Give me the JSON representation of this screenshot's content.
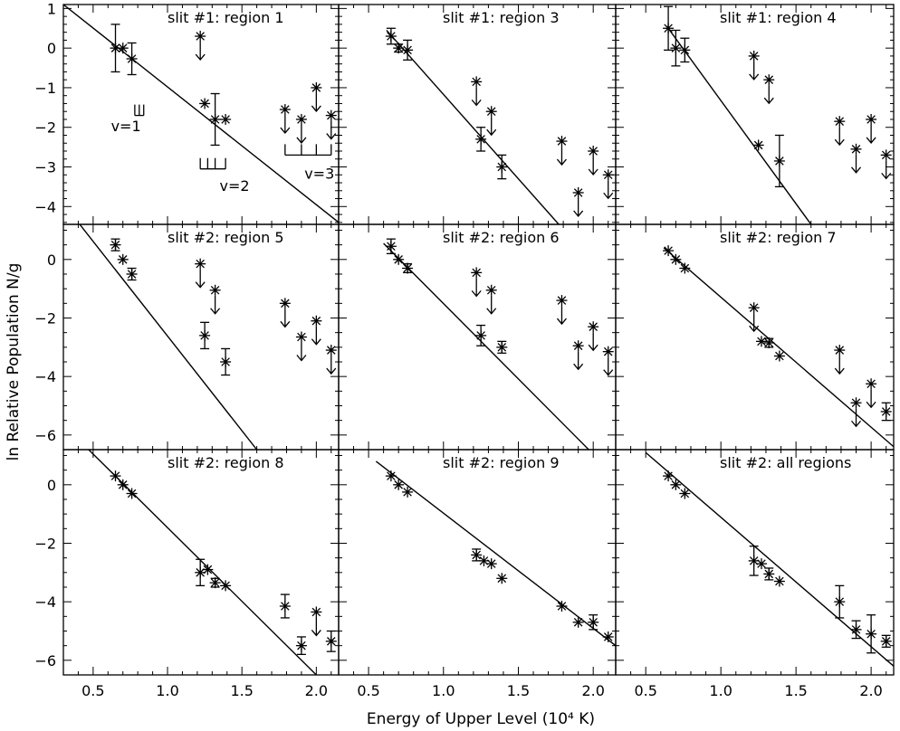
{
  "figure": {
    "xlabel": "Energy of Upper Level (10⁴ K)",
    "ylabel": "ln Relative Population N/g"
  },
  "chart_data": [
    {
      "type": "scatter",
      "title": "slit #1: region 1",
      "xlim": [
        0.3,
        2.15
      ],
      "ylim": [
        -4.45,
        1.1
      ],
      "yticks": [
        "1",
        "0",
        "−1",
        "−2",
        "−3",
        "−4"
      ],
      "ytick_values": [
        1,
        0,
        -1,
        -2,
        -3,
        -4
      ],
      "fit": [
        [
          0.3,
          1.1
        ],
        [
          2.15,
          -4.4
        ]
      ],
      "points": [
        {
          "x": 0.65,
          "y": 0.0,
          "err": 0.6
        },
        {
          "x": 0.7,
          "y": 0.0,
          "err": 0.0
        },
        {
          "x": 0.76,
          "y": -0.27,
          "err": 0.4
        },
        {
          "x": 1.25,
          "y": -1.4,
          "err": 0.0
        },
        {
          "x": 1.32,
          "y": -1.8,
          "err": 0.65
        },
        {
          "x": 1.39,
          "y": -1.8,
          "err": 0.0
        }
      ],
      "upper_limits": [
        {
          "x": 1.22,
          "y": 0.3
        },
        {
          "x": 1.79,
          "y": -1.55
        },
        {
          "x": 1.9,
          "y": -1.8
        },
        {
          "x": 2.0,
          "y": -1.0
        },
        {
          "x": 2.1,
          "y": -1.7
        }
      ],
      "annotations": [
        {
          "label": "v=1",
          "x": 0.62,
          "y": -2.1,
          "comb_x": [
            0.78,
            0.81,
            0.84
          ],
          "comb_y": -1.7
        },
        {
          "label": "v=2",
          "x": 1.35,
          "y": -3.6,
          "comb_x": [
            1.22,
            1.27,
            1.32,
            1.39
          ],
          "comb_y": -3.05
        },
        {
          "label": "v=3",
          "x": 1.92,
          "y": -3.3,
          "comb_x": [
            1.79,
            1.9,
            2.0,
            2.1
          ],
          "comb_y": -2.7
        }
      ]
    },
    {
      "type": "scatter",
      "title": "slit #1: region 3",
      "xlim": [
        0.3,
        2.15
      ],
      "ylim": [
        -4.45,
        1.1
      ],
      "yticks": [],
      "ytick_values": [
        1,
        0,
        -1,
        -2,
        -3,
        -4
      ],
      "fit": [
        [
          0.62,
          0.45
        ],
        [
          1.77,
          -4.45
        ]
      ],
      "points": [
        {
          "x": 0.65,
          "y": 0.3,
          "err": 0.2
        },
        {
          "x": 0.7,
          "y": 0.0,
          "err": 0.1
        },
        {
          "x": 0.76,
          "y": -0.05,
          "err": 0.25
        },
        {
          "x": 1.25,
          "y": -2.3,
          "err": 0.3
        },
        {
          "x": 1.39,
          "y": -3.0,
          "err": 0.3
        }
      ],
      "upper_limits": [
        {
          "x": 1.22,
          "y": -0.85
        },
        {
          "x": 1.32,
          "y": -1.6
        },
        {
          "x": 1.79,
          "y": -2.35
        },
        {
          "x": 1.9,
          "y": -3.65
        },
        {
          "x": 2.0,
          "y": -2.6
        },
        {
          "x": 2.1,
          "y": -3.2
        }
      ],
      "annotations": []
    },
    {
      "type": "scatter",
      "title": "slit #1: region 4",
      "xlim": [
        0.3,
        2.15
      ],
      "ylim": [
        -4.45,
        1.1
      ],
      "yticks": [],
      "ytick_values": [
        1,
        0,
        -1,
        -2,
        -3,
        -4
      ],
      "fit": [
        [
          0.64,
          0.55
        ],
        [
          1.6,
          -4.45
        ]
      ],
      "points": [
        {
          "x": 0.65,
          "y": 0.5,
          "err": 0.55
        },
        {
          "x": 0.7,
          "y": 0.0,
          "err": 0.45
        },
        {
          "x": 0.76,
          "y": -0.05,
          "err": 0.3
        },
        {
          "x": 1.25,
          "y": -2.45,
          "err": 0.0
        },
        {
          "x": 1.39,
          "y": -2.85,
          "err": 0.65
        }
      ],
      "upper_limits": [
        {
          "x": 1.22,
          "y": -0.2
        },
        {
          "x": 1.32,
          "y": -0.8
        },
        {
          "x": 1.79,
          "y": -1.85
        },
        {
          "x": 1.9,
          "y": -2.55
        },
        {
          "x": 2.0,
          "y": -1.8
        },
        {
          "x": 2.1,
          "y": -2.7
        }
      ],
      "annotations": []
    },
    {
      "type": "scatter",
      "title": "slit #2: region 5",
      "xlim": [
        0.3,
        2.15
      ],
      "ylim": [
        -6.5,
        1.2
      ],
      "yticks": [
        "0",
        "−2",
        "−4",
        "−6"
      ],
      "ytick_values": [
        0,
        -2,
        -4,
        -6
      ],
      "fit": [
        [
          0.41,
          1.2
        ],
        [
          1.6,
          -6.5
        ]
      ],
      "points": [
        {
          "x": 0.65,
          "y": 0.5,
          "err": 0.2
        },
        {
          "x": 0.7,
          "y": 0.0,
          "err": 0.0
        },
        {
          "x": 0.76,
          "y": -0.5,
          "err": 0.2
        },
        {
          "x": 1.25,
          "y": -2.6,
          "err": 0.45
        },
        {
          "x": 1.39,
          "y": -3.5,
          "err": 0.45
        }
      ],
      "upper_limits": [
        {
          "x": 1.22,
          "y": -0.15
        },
        {
          "x": 1.32,
          "y": -1.05
        },
        {
          "x": 1.79,
          "y": -1.5
        },
        {
          "x": 1.9,
          "y": -2.65
        },
        {
          "x": 2.0,
          "y": -2.1
        },
        {
          "x": 2.1,
          "y": -3.1
        }
      ],
      "annotations": []
    },
    {
      "type": "scatter",
      "title": "slit #2: region 6",
      "xlim": [
        0.3,
        2.15
      ],
      "ylim": [
        -6.5,
        1.2
      ],
      "yticks": [],
      "ytick_values": [
        0,
        -2,
        -4,
        -6
      ],
      "fit": [
        [
          0.6,
          0.55
        ],
        [
          1.97,
          -6.5
        ]
      ],
      "points": [
        {
          "x": 0.65,
          "y": 0.45,
          "err": 0.25
        },
        {
          "x": 0.7,
          "y": 0.0,
          "err": 0.0
        },
        {
          "x": 0.76,
          "y": -0.3,
          "err": 0.15
        },
        {
          "x": 1.25,
          "y": -2.6,
          "err": 0.35
        },
        {
          "x": 1.39,
          "y": -3.0,
          "err": 0.2
        }
      ],
      "upper_limits": [
        {
          "x": 1.22,
          "y": -0.45
        },
        {
          "x": 1.32,
          "y": -1.05
        },
        {
          "x": 1.79,
          "y": -1.4
        },
        {
          "x": 1.9,
          "y": -2.95
        },
        {
          "x": 2.0,
          "y": -2.3
        },
        {
          "x": 2.1,
          "y": -3.15
        }
      ],
      "annotations": []
    },
    {
      "type": "scatter",
      "title": "slit #2: region 7",
      "xlim": [
        0.3,
        2.15
      ],
      "ylim": [
        -6.5,
        1.2
      ],
      "yticks": [],
      "ytick_values": [
        0,
        -2,
        -4,
        -6
      ],
      "fit": [
        [
          0.62,
          0.4
        ],
        [
          2.15,
          -6.4
        ]
      ],
      "points": [
        {
          "x": 0.65,
          "y": 0.3,
          "err": 0.0
        },
        {
          "x": 0.7,
          "y": 0.0,
          "err": 0.0
        },
        {
          "x": 0.76,
          "y": -0.3,
          "err": 0.0
        },
        {
          "x": 1.27,
          "y": -2.8,
          "err": 0.0
        },
        {
          "x": 1.32,
          "y": -2.85,
          "err": 0.15
        },
        {
          "x": 1.39,
          "y": -3.3,
          "err": 0.0
        },
        {
          "x": 2.1,
          "y": -5.2,
          "err": 0.3
        }
      ],
      "upper_limits": [
        {
          "x": 1.22,
          "y": -1.65
        },
        {
          "x": 1.79,
          "y": -3.1
        },
        {
          "x": 1.9,
          "y": -4.9
        },
        {
          "x": 2.0,
          "y": -4.25
        }
      ],
      "annotations": []
    },
    {
      "type": "scatter",
      "title": "slit #2: region 8",
      "xlim": [
        0.3,
        2.15
      ],
      "ylim": [
        -6.5,
        1.2
      ],
      "yticks": [
        "0",
        "−2",
        "−4",
        "−6"
      ],
      "ytick_values": [
        0,
        -2,
        -4,
        -6
      ],
      "fit": [
        [
          0.47,
          1.2
        ],
        [
          2.0,
          -6.5
        ]
      ],
      "points": [
        {
          "x": 0.65,
          "y": 0.3,
          "err": 0.0
        },
        {
          "x": 0.7,
          "y": 0.0,
          "err": 0.0
        },
        {
          "x": 0.76,
          "y": -0.3,
          "err": 0.0
        },
        {
          "x": 1.22,
          "y": -3.0,
          "err": 0.45
        },
        {
          "x": 1.27,
          "y": -2.9,
          "err": 0.0
        },
        {
          "x": 1.32,
          "y": -3.35,
          "err": 0.15
        },
        {
          "x": 1.39,
          "y": -3.45,
          "err": 0.0
        },
        {
          "x": 1.79,
          "y": -4.15,
          "err": 0.4
        },
        {
          "x": 1.9,
          "y": -5.5,
          "err": 0.3
        },
        {
          "x": 2.1,
          "y": -5.35,
          "err": 0.35
        }
      ],
      "upper_limits": [
        {
          "x": 2.0,
          "y": -4.35
        }
      ],
      "annotations": []
    },
    {
      "type": "scatter",
      "title": "slit #2: region 9",
      "xlim": [
        0.3,
        2.15
      ],
      "ylim": [
        -6.5,
        1.2
      ],
      "yticks": [],
      "ytick_values": [
        0,
        -2,
        -4,
        -6
      ],
      "fit": [
        [
          0.55,
          0.8
        ],
        [
          2.15,
          -5.5
        ]
      ],
      "points": [
        {
          "x": 0.65,
          "y": 0.3,
          "err": 0.0
        },
        {
          "x": 0.7,
          "y": 0.0,
          "err": 0.0
        },
        {
          "x": 0.76,
          "y": -0.25,
          "err": 0.0
        },
        {
          "x": 1.22,
          "y": -2.4,
          "err": 0.2
        },
        {
          "x": 1.27,
          "y": -2.6,
          "err": 0.0
        },
        {
          "x": 1.32,
          "y": -2.7,
          "err": 0.0
        },
        {
          "x": 1.39,
          "y": -3.2,
          "err": 0.0
        },
        {
          "x": 1.79,
          "y": -4.15,
          "err": 0.0
        },
        {
          "x": 1.9,
          "y": -4.7,
          "err": 0.0
        },
        {
          "x": 2.0,
          "y": -4.7,
          "err": 0.25
        },
        {
          "x": 2.1,
          "y": -5.2,
          "err": 0.0
        }
      ],
      "upper_limits": [],
      "annotations": []
    },
    {
      "type": "scatter",
      "title": "slit #2: all regions",
      "xlim": [
        0.3,
        2.15
      ],
      "ylim": [
        -6.5,
        1.2
      ],
      "yticks": [],
      "ytick_values": [
        0,
        -2,
        -4,
        -6
      ],
      "fit": [
        [
          0.5,
          1.1
        ],
        [
          2.15,
          -6.2
        ]
      ],
      "points": [
        {
          "x": 0.65,
          "y": 0.3,
          "err": 0.0
        },
        {
          "x": 0.7,
          "y": 0.0,
          "err": 0.0
        },
        {
          "x": 0.76,
          "y": -0.3,
          "err": 0.0
        },
        {
          "x": 1.22,
          "y": -2.6,
          "err": 0.5
        },
        {
          "x": 1.27,
          "y": -2.7,
          "err": 0.0
        },
        {
          "x": 1.32,
          "y": -3.05,
          "err": 0.2
        },
        {
          "x": 1.39,
          "y": -3.3,
          "err": 0.0
        },
        {
          "x": 1.79,
          "y": -4.0,
          "err": 0.55
        },
        {
          "x": 1.9,
          "y": -4.95,
          "err": 0.3
        },
        {
          "x": 2.0,
          "y": -5.1,
          "err": 0.65
        },
        {
          "x": 2.1,
          "y": -5.35,
          "err": 0.2
        }
      ],
      "upper_limits": [],
      "annotations": []
    }
  ],
  "xticks": {
    "labels": [
      "0.5",
      "1.0",
      "1.5",
      "2.0"
    ],
    "values": [
      0.5,
      1.0,
      1.5,
      2.0
    ],
    "minor": [
      0.4,
      0.6,
      0.7,
      0.8,
      0.9,
      1.1,
      1.2,
      1.3,
      1.4,
      1.6,
      1.7,
      1.8,
      1.9,
      2.1
    ]
  }
}
